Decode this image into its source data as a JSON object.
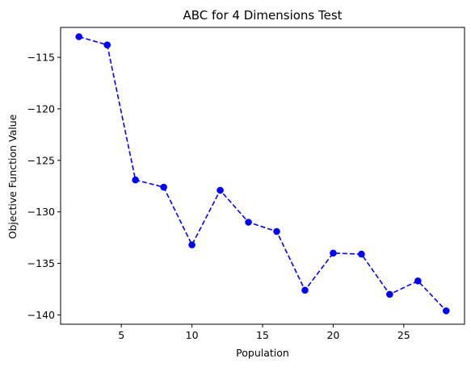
{
  "chart_data": {
    "type": "line",
    "title": "ABC for 4 Dimensions Test",
    "xlabel": "Population",
    "ylabel": "Objective Function Value",
    "x": [
      2,
      4,
      6,
      8,
      10,
      12,
      14,
      16,
      18,
      20,
      22,
      24,
      26,
      28
    ],
    "series": [
      {
        "values": [
          -113.0,
          -113.8,
          -126.9,
          -127.6,
          -133.2,
          -127.9,
          -131.0,
          -131.9,
          -137.6,
          -134.0,
          -134.1,
          -138.0,
          -136.7,
          -139.6
        ],
        "color": "#0000ff",
        "line_style": "dashed",
        "marker": "circle"
      }
    ],
    "xlim": [
      0.7,
      29.3
    ],
    "ylim": [
      -140.9,
      -112.1
    ],
    "xticks": [
      5,
      10,
      15,
      20,
      25
    ],
    "yticks": [
      -115,
      -120,
      -125,
      -130,
      -135,
      -140
    ],
    "grid": false,
    "legend": "none"
  }
}
